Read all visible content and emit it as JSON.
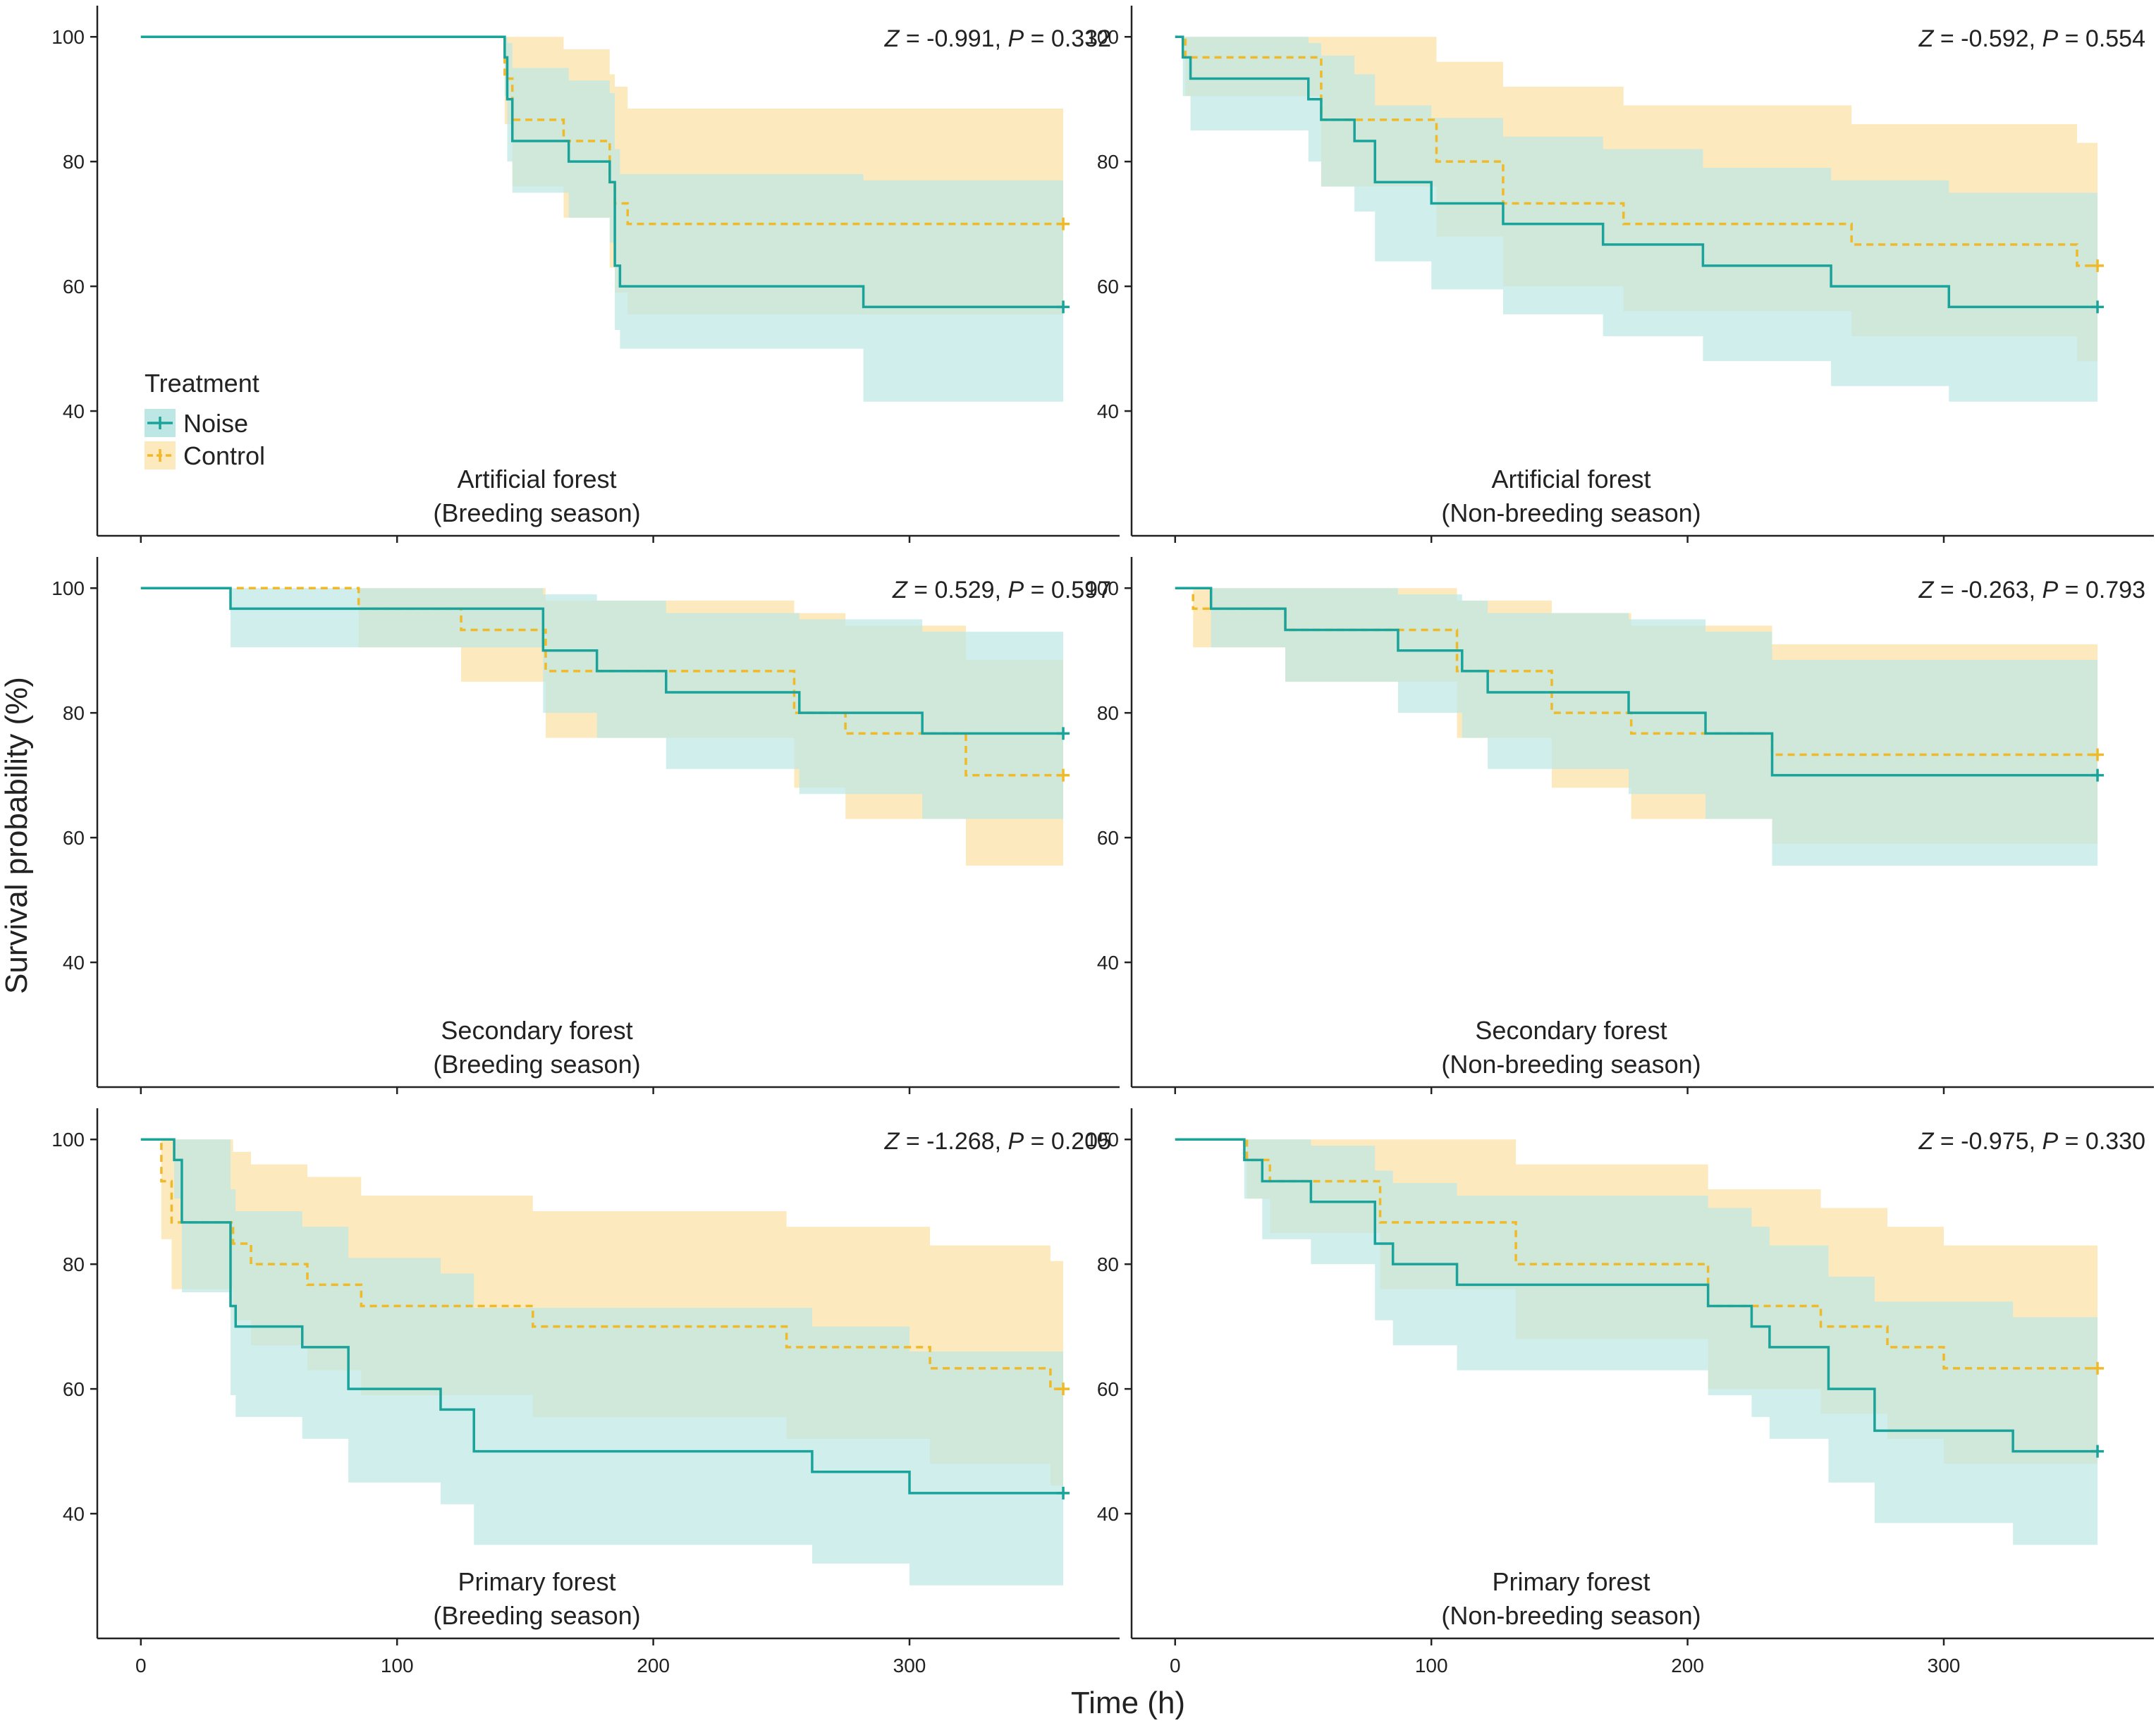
{
  "chart_data": {
    "type": "line",
    "step": true,
    "xlabel": "Time (h)",
    "ylabel": "Survival probability (%)",
    "xlim": [
      -17,
      382
    ],
    "ylim": [
      20,
      105
    ],
    "xticks": [
      "0",
      "100",
      "200",
      "300"
    ],
    "yticks": [
      "40",
      "60",
      "80",
      "100"
    ],
    "legend": {
      "title": "Treatment",
      "placement": "top-left panel, lower left",
      "entries": [
        {
          "name": "Noise",
          "color": "#1aa39a",
          "band_color": "#bde7e4",
          "line_style": "solid"
        },
        {
          "name": "Control",
          "color": "#f0b928",
          "band_color": "#fde9be",
          "line_style": "dashed"
        }
      ]
    },
    "panels": [
      {
        "title_line1": "Artificial forest",
        "title_line2": "(Breeding season)",
        "stat": {
          "z_label": "Z",
          "z_value": " = -0.991, ",
          "p_label": "P",
          "p_value": " = 0.332"
        },
        "series": [
          {
            "name": "Noise",
            "x": [
              0,
              141,
              142,
              143,
              145,
              167,
              183,
              185,
              187,
              282,
              360
            ],
            "y": [
              100,
              100,
              96.7,
              90,
              83.3,
              80,
              76.7,
              63.3,
              60,
              56.7,
              56.7
            ],
            "lower": [
              100,
              100,
              90.5,
              80,
              75,
              71,
              67,
              53,
              50,
              41.5,
              41.5
            ],
            "upper": [
              100,
              100,
              100,
              99,
              95,
              93,
              91,
              82,
              78,
              77,
              77
            ]
          },
          {
            "name": "Control",
            "x": [
              0,
              141,
              142,
              145,
              165,
              183,
              185,
              190,
              360
            ],
            "y": [
              100,
              100,
              93.3,
              86.7,
              83.3,
              76.7,
              73.3,
              70,
              70
            ],
            "lower": [
              100,
              100,
              86,
              76,
              71,
              63,
              59,
              55.5,
              55.5
            ],
            "upper": [
              100,
              100,
              100,
              100,
              98,
              94,
              92,
              88.5,
              88.5
            ]
          }
        ]
      },
      {
        "title_line1": "Artificial forest",
        "title_line2": "(Non-breeding season)",
        "stat": {
          "z_label": "Z",
          "z_value": " = -0.592, ",
          "p_label": "P",
          "p_value": " = 0.554"
        },
        "series": [
          {
            "name": "Noise",
            "x": [
              0,
              3,
              6,
              52,
              57,
              70,
              78,
              100,
              128,
              167,
              206,
              256,
              302,
              360
            ],
            "y": [
              100,
              96.7,
              93.3,
              90,
              86.7,
              83.3,
              76.7,
              73.3,
              70,
              66.7,
              63.3,
              60,
              56.7,
              56.7
            ],
            "lower": [
              100,
              90.5,
              85,
              80,
              76,
              72,
              64,
              59.5,
              55.5,
              52,
              48,
              44,
              41.5,
              41.5
            ],
            "upper": [
              100,
              100,
              100,
              99,
              97,
              94,
              89,
              87,
              84,
              82,
              79,
              77,
              75,
              75
            ]
          },
          {
            "name": "Control",
            "x": [
              0,
              4,
              57,
              102,
              128,
              175,
              264,
              352,
              360
            ],
            "y": [
              100,
              96.7,
              86.7,
              80,
              73.3,
              70,
              66.7,
              63.3,
              63.3
            ],
            "lower": [
              100,
              90.5,
              76,
              68,
              60,
              56,
              52,
              48,
              48
            ],
            "upper": [
              100,
              100,
              100,
              96,
              92,
              89,
              86,
              83,
              83
            ]
          }
        ]
      },
      {
        "title_line1": "Secondary forest",
        "title_line2": "(Breeding season)",
        "stat": {
          "z_label": "Z",
          "z_value": " = 0.529, ",
          "p_label": "P",
          "p_value": " = 0.597"
        },
        "series": [
          {
            "name": "Noise",
            "x": [
              0,
              35,
              157,
              178,
              205,
              257,
              305,
              360
            ],
            "y": [
              100,
              96.7,
              90,
              86.7,
              83.3,
              80,
              76.7,
              76.7
            ],
            "lower": [
              100,
              90.5,
              80,
              76,
              71,
              67,
              63,
              63
            ],
            "upper": [
              100,
              100,
              99,
              98,
              96,
              95,
              93,
              93
            ]
          },
          {
            "name": "Control",
            "x": [
              0,
              85,
              125,
              158,
              255,
              275,
              322,
              360
            ],
            "y": [
              100,
              96.7,
              93.3,
              86.7,
              80,
              76.7,
              70,
              70
            ],
            "lower": [
              100,
              90.5,
              85,
              76,
              68,
              63,
              55.5,
              55.5
            ],
            "upper": [
              100,
              100,
              100,
              98,
              96,
              94,
              88.5,
              88.5
            ]
          }
        ]
      },
      {
        "title_line1": "Secondary forest",
        "title_line2": "(Non-breeding season)",
        "stat": {
          "z_label": "Z",
          "z_value": " = -0.263, ",
          "p_label": "P",
          "p_value": " = 0.793"
        },
        "series": [
          {
            "name": "Noise",
            "x": [
              0,
              14,
              43,
              87,
              112,
              122,
              177,
              207,
              233,
              360
            ],
            "y": [
              100,
              96.7,
              93.3,
              90,
              86.7,
              83.3,
              80,
              76.7,
              70,
              70
            ],
            "lower": [
              100,
              90.5,
              85,
              80,
              76,
              71,
              67,
              63,
              55.5,
              55.5
            ],
            "upper": [
              100,
              100,
              100,
              99,
              98,
              96,
              95,
              93,
              88.5,
              88.5
            ]
          },
          {
            "name": "Control",
            "x": [
              0,
              7,
              43,
              110,
              147,
              178,
              233,
              360
            ],
            "y": [
              100,
              96.7,
              93.3,
              86.7,
              80,
              76.7,
              73.3,
              73.3
            ],
            "lower": [
              100,
              90.5,
              85,
              76,
              68,
              63,
              59,
              59
            ],
            "upper": [
              100,
              100,
              100,
              98,
              96,
              94,
              91,
              91
            ]
          }
        ]
      },
      {
        "title_line1": "Primary forest",
        "title_line2": "(Breeding season)",
        "stat": {
          "z_label": "Z",
          "z_value": " = -1.268, ",
          "p_label": "P",
          "p_value": " = 0.205"
        },
        "series": [
          {
            "name": "Noise",
            "x": [
              0,
              13,
              16,
              35,
              37,
              63,
              81,
              117,
              130,
              262,
              300,
              360
            ],
            "y": [
              100,
              96.7,
              86.7,
              73.3,
              70,
              66.7,
              60,
              56.7,
              50,
              46.7,
              43.3,
              43.3
            ],
            "lower": [
              100,
              90.5,
              75.5,
              59,
              55.5,
              52,
              45,
              41.5,
              35,
              32,
              28.5,
              28.5
            ],
            "upper": [
              100,
              100,
              100,
              92,
              88.5,
              86,
              81,
              78.5,
              73,
              70,
              66,
              66
            ]
          },
          {
            "name": "Control",
            "x": [
              0,
              8,
              12,
              36,
              43,
              65,
              86,
              131,
              153,
              252,
              308,
              355,
              360
            ],
            "y": [
              100,
              93.3,
              86.7,
              83.3,
              80,
              76.7,
              73.3,
              73.3,
              70,
              66.7,
              63.3,
              60,
              60
            ],
            "lower": [
              100,
              84,
              76,
              71,
              67,
              63,
              59,
              59,
              55.5,
              52,
              48,
              44.5,
              44.5
            ],
            "upper": [
              100,
              100,
              100,
              98,
              96,
              94,
              91,
              91,
              88.5,
              86,
              83,
              80.5,
              80.5
            ]
          }
        ]
      },
      {
        "title_line1": "Primary forest",
        "title_line2": "(Non-breeding season)",
        "stat": {
          "z_label": "Z",
          "z_value": " = -0.975, ",
          "p_label": "P",
          "p_value": " = 0.330"
        },
        "series": [
          {
            "name": "Noise",
            "x": [
              0,
              27,
              34,
              53,
              78,
              85,
              110,
              208,
              225,
              232,
              255,
              273,
              327,
              360
            ],
            "y": [
              100,
              96.7,
              93.3,
              90,
              83.3,
              80,
              76.7,
              73.3,
              70,
              66.7,
              60,
              53.3,
              50,
              50
            ],
            "lower": [
              100,
              90.5,
              84,
              80,
              71,
              67,
              63,
              59,
              55.5,
              52,
              45,
              38.5,
              35,
              35
            ],
            "upper": [
              100,
              100,
              100,
              99,
              95,
              93,
              91,
              89,
              86,
              83,
              78,
              74,
              71.5,
              71.5
            ]
          },
          {
            "name": "Control",
            "x": [
              0,
              28,
              37,
              80,
              133,
              208,
              252,
              278,
              300,
              360
            ],
            "y": [
              100,
              96.7,
              93.3,
              86.7,
              80,
              73.3,
              70,
              66.7,
              63.3,
              63.3
            ],
            "lower": [
              100,
              90.5,
              85,
              76,
              68,
              60,
              56,
              52,
              48,
              48
            ],
            "upper": [
              100,
              100,
              100,
              100,
              96,
              92,
              89,
              86,
              83,
              83
            ]
          }
        ]
      }
    ]
  }
}
